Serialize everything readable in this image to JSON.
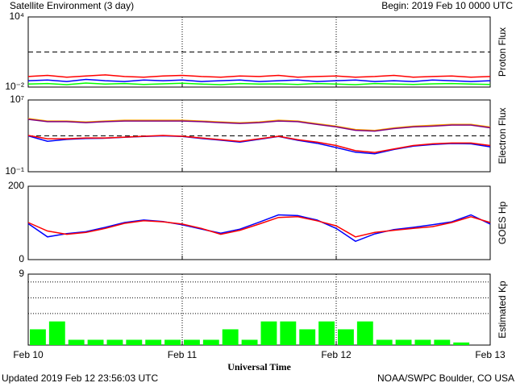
{
  "header": {
    "title": "Satellite Environment (3 day)",
    "begin": "Begin:  2019 Feb 10 0000 UTC"
  },
  "footer": {
    "updated": "Updated 2019 Feb 12 23:56:03 UTC",
    "credit": "NOAA/SWPC Boulder, CO USA"
  },
  "chart_data": [
    {
      "type": "line",
      "ylabel": "Proton Flux",
      "log": true,
      "ylim": [
        0.01,
        10000
      ],
      "yticks": [
        {
          "value": 10000,
          "label": "10⁴"
        },
        {
          "value": 0.01,
          "label": "10⁻²"
        }
      ],
      "xlim": [
        0,
        72
      ],
      "xticks": [
        0,
        24,
        48,
        72
      ],
      "reference_lines": [
        10
      ],
      "x": [
        0,
        3,
        6,
        9,
        12,
        15,
        18,
        21,
        24,
        27,
        30,
        33,
        36,
        39,
        42,
        45,
        48,
        51,
        54,
        57,
        60,
        63,
        66,
        69,
        72
      ],
      "series": [
        {
          "color": "#00ff00",
          "values": [
            0.018,
            0.02,
            0.016,
            0.022,
            0.018,
            0.02,
            0.017,
            0.019,
            0.021,
            0.018,
            0.016,
            0.02,
            0.018,
            0.019,
            0.017,
            0.02,
            0.018,
            0.016,
            0.02,
            0.018,
            0.017,
            0.019,
            0.02,
            0.018,
            0.017
          ]
        },
        {
          "color": "#0000ff",
          "values": [
            0.035,
            0.04,
            0.03,
            0.045,
            0.035,
            0.03,
            0.04,
            0.035,
            0.04,
            0.03,
            0.035,
            0.04,
            0.03,
            0.035,
            0.04,
            0.03,
            0.035,
            0.04,
            0.03,
            0.035,
            0.03,
            0.04,
            0.035,
            0.03,
            0.035
          ]
        },
        {
          "color": "#ff0000",
          "values": [
            0.08,
            0.1,
            0.07,
            0.09,
            0.11,
            0.08,
            0.07,
            0.09,
            0.1,
            0.08,
            0.07,
            0.09,
            0.08,
            0.1,
            0.07,
            0.08,
            0.09,
            0.07,
            0.08,
            0.1,
            0.07,
            0.08,
            0.09,
            0.07,
            0.08
          ]
        }
      ]
    },
    {
      "type": "line",
      "ylabel": "Electron Flux",
      "log": true,
      "ylim": [
        0.1,
        10000000
      ],
      "yticks": [
        {
          "value": 10000000,
          "label": "10⁷"
        },
        {
          "value": 0.1,
          "label": "10⁻¹"
        }
      ],
      "xlim": [
        0,
        72
      ],
      "xticks": [
        0,
        24,
        48,
        72
      ],
      "reference_lines": [
        1000
      ],
      "x": [
        0,
        3,
        6,
        9,
        12,
        15,
        18,
        21,
        24,
        27,
        30,
        33,
        36,
        39,
        42,
        45,
        48,
        51,
        54,
        57,
        60,
        63,
        66,
        69,
        72
      ],
      "series": [
        {
          "color": "#ffa500",
          "values": [
            85000,
            45000,
            45000,
            36000,
            45000,
            55000,
            55000,
            55000,
            55000,
            45000,
            36000,
            29000,
            36000,
            55000,
            45000,
            23000,
            12000,
            5100,
            4100,
            7800,
            12000,
            15000,
            19000,
            19000,
            9800
          ]
        },
        {
          "color": "#800080",
          "values": [
            70000,
            38000,
            38000,
            30000,
            38000,
            45000,
            45000,
            45000,
            45000,
            38000,
            30000,
            24000,
            30000,
            45000,
            38000,
            19000,
            10000,
            4200,
            3400,
            6500,
            10000,
            12000,
            16000,
            16000,
            8000
          ]
        },
        {
          "color": "#0000ff",
          "values": [
            1000,
            250,
            400,
            500,
            550,
            700,
            850,
            1000,
            850,
            500,
            330,
            200,
            420,
            850,
            320,
            150,
            50,
            15,
            10,
            30,
            70,
            110,
            140,
            130,
            60
          ]
        },
        {
          "color": "#ff0000",
          "values": [
            1100,
            470,
            470,
            580,
            580,
            720,
            900,
            1100,
            900,
            580,
            380,
            240,
            470,
            900,
            380,
            200,
            83,
            22,
            14,
            35,
            83,
            130,
            160,
            160,
            83
          ]
        }
      ]
    },
    {
      "type": "line",
      "ylabel": "GOES Hp",
      "log": false,
      "ylim": [
        0,
        200
      ],
      "yticks": [
        200,
        0
      ],
      "xlim": [
        0,
        72
      ],
      "xticks": [
        0,
        24,
        48,
        72
      ],
      "x": [
        0,
        3,
        6,
        9,
        12,
        15,
        18,
        21,
        24,
        27,
        30,
        33,
        36,
        39,
        42,
        45,
        48,
        51,
        54,
        57,
        60,
        63,
        66,
        69,
        72
      ],
      "series": [
        {
          "color": "#0000ff",
          "values": [
            98,
            62,
            71,
            76,
            88,
            101,
            108,
            104,
            95,
            83,
            72,
            83,
            102,
            122,
            120,
            108,
            85,
            50,
            70,
            82,
            88,
            95,
            103,
            122,
            97
          ]
        },
        {
          "color": "#ff0000",
          "values": [
            101,
            78,
            69,
            74,
            85,
            99,
            106,
            103,
            97,
            85,
            69,
            80,
            97,
            115,
            117,
            106,
            92,
            62,
            74,
            80,
            85,
            90,
            101,
            117,
            101
          ]
        }
      ]
    },
    {
      "type": "bar",
      "ylabel": "Estimated Kp",
      "log": false,
      "ylim": [
        0,
        9
      ],
      "yticks": [
        9
      ],
      "reference_lines": [
        4,
        6,
        8
      ],
      "xlim": [
        0,
        72
      ],
      "xlabel": "Universal Time",
      "xticks": [
        {
          "value": 0,
          "label": "Feb 10"
        },
        {
          "value": 24,
          "label": "Feb 11"
        },
        {
          "value": 48,
          "label": "Feb 12"
        },
        {
          "value": 72,
          "label": "Feb 13"
        }
      ],
      "bar_hours": 3,
      "color": "#00ff00",
      "x": [
        0,
        3,
        6,
        9,
        12,
        15,
        18,
        21,
        24,
        27,
        30,
        33,
        36,
        39,
        42,
        45,
        48,
        51,
        54,
        57,
        60,
        63,
        66,
        69
      ],
      "values": [
        2,
        3,
        0.67,
        0.67,
        0.67,
        0.67,
        0.67,
        0.67,
        0.67,
        0.67,
        2,
        0.67,
        3,
        3,
        2,
        3,
        2,
        3,
        0.67,
        0.67,
        0.67,
        0.67,
        0.33,
        0
      ]
    }
  ]
}
